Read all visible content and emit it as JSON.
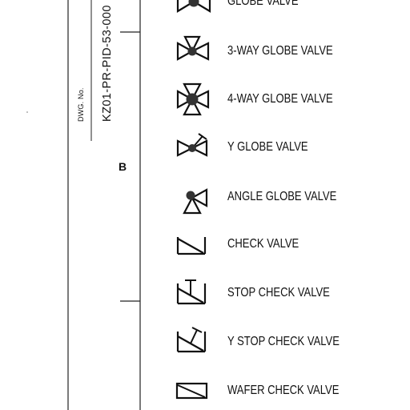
{
  "title_block": {
    "dwg_no_label": "DWG. No.",
    "dwg_number": "KZ01-PR-PID-53-000",
    "zone_marker": "B"
  },
  "legend": [
    {
      "symbol": "globe-valve-icon",
      "label": "GLOBE VALVE"
    },
    {
      "symbol": "three-way-globe-valve-icon",
      "label": "3-WAY GLOBE VALVE"
    },
    {
      "symbol": "four-way-globe-valve-icon",
      "label": "4-WAY GLOBE VALVE"
    },
    {
      "symbol": "y-globe-valve-icon",
      "label": "Y GLOBE VALVE"
    },
    {
      "symbol": "angle-globe-valve-icon",
      "label": "ANGLE GLOBE VALVE"
    },
    {
      "symbol": "check-valve-icon",
      "label": "CHECK VALVE"
    },
    {
      "symbol": "stop-check-valve-icon",
      "label": "STOP CHECK VALVE"
    },
    {
      "symbol": "y-stop-check-valve-icon",
      "label": "Y STOP CHECK VALVE"
    },
    {
      "symbol": "wafer-check-valve-icon",
      "label": "WAFER CHECK VALVE"
    }
  ]
}
